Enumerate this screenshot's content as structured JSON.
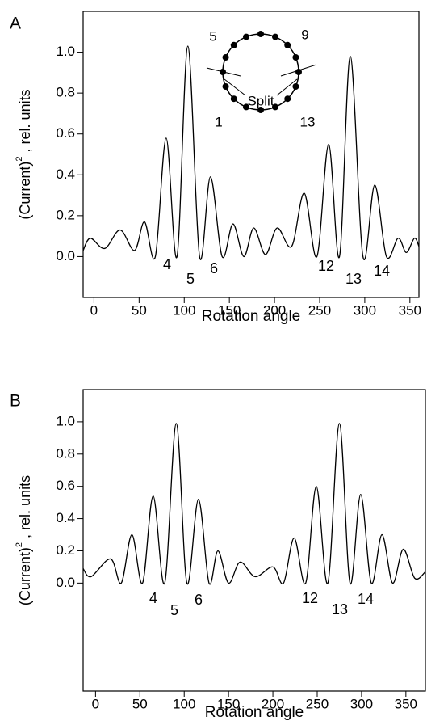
{
  "chart_data": [
    {
      "type": "line",
      "panel": "A",
      "ylabel": {
        "text": "(Current)",
        "superscript": "2",
        "suffix": " , rel. units"
      },
      "xlabel": "Rotation angle",
      "xlim": [
        -12,
        360
      ],
      "ylim": [
        -0.2,
        1.2
      ],
      "xticks": [
        0,
        50,
        100,
        150,
        200,
        250,
        300,
        350
      ],
      "yticks": [
        {
          "value": 0,
          "label": "0.0"
        },
        0.2,
        0.4,
        0.6,
        0.8,
        {
          "value": 1,
          "label": "1.0"
        }
      ],
      "x": [
        -12,
        -4,
        12,
        29,
        45,
        56,
        68,
        80,
        92,
        104,
        117,
        129,
        142,
        154,
        166,
        177,
        190,
        203,
        219,
        233,
        247,
        260,
        272,
        284,
        298,
        311,
        324,
        337,
        346,
        355,
        360
      ],
      "values": [
        0.03,
        0.09,
        0.04,
        0.13,
        0.03,
        0.17,
        0.0,
        0.58,
        0.0,
        1.03,
        0.0,
        0.39,
        0.0,
        0.16,
        0.0,
        0.14,
        0.01,
        0.14,
        0.05,
        0.31,
        0.0,
        0.55,
        0.0,
        0.98,
        0.0,
        0.35,
        0.0,
        0.09,
        0.02,
        0.09,
        0.05
      ],
      "color": "#000000",
      "annotations": [
        "4",
        "5",
        "6",
        "12",
        "13",
        "14"
      ],
      "inset": {
        "labels": [
          "5",
          "9",
          "1",
          "13"
        ],
        "caption": "Split"
      }
    },
    {
      "type": "line",
      "panel": "B",
      "ylabel": {
        "text": "(Current)",
        "superscript": "2",
        "suffix": " , rel. units"
      },
      "xlabel": "Rotation angle",
      "xlim": [
        -14,
        372
      ],
      "ylim": [
        -0.67,
        1.2
      ],
      "xticks": [
        0,
        50,
        100,
        150,
        200,
        250,
        300,
        350
      ],
      "yticks": [
        {
          "value": 0,
          "label": "0.0"
        },
        0.2,
        0.4,
        0.6,
        0.8,
        {
          "value": 1,
          "label": "1.0"
        }
      ],
      "x": [
        -14,
        -5,
        17,
        29,
        41,
        53,
        65,
        78,
        91,
        103,
        116,
        128,
        138,
        150,
        163,
        180,
        200,
        212,
        224,
        237,
        249,
        262,
        275,
        287,
        299,
        311,
        323,
        335,
        347,
        360,
        372
      ],
      "values": [
        0.09,
        0.04,
        0.15,
        0.0,
        0.3,
        0.0,
        0.54,
        0.0,
        0.99,
        0.0,
        0.52,
        0.0,
        0.2,
        0.0,
        0.13,
        0.04,
        0.1,
        0.0,
        0.28,
        0.0,
        0.6,
        0.0,
        0.99,
        0.0,
        0.55,
        0.0,
        0.3,
        0.0,
        0.21,
        0.03,
        0.07
      ],
      "color": "#000000",
      "annotations": [
        "4",
        "5",
        "6",
        "12",
        "13",
        "14"
      ]
    }
  ]
}
